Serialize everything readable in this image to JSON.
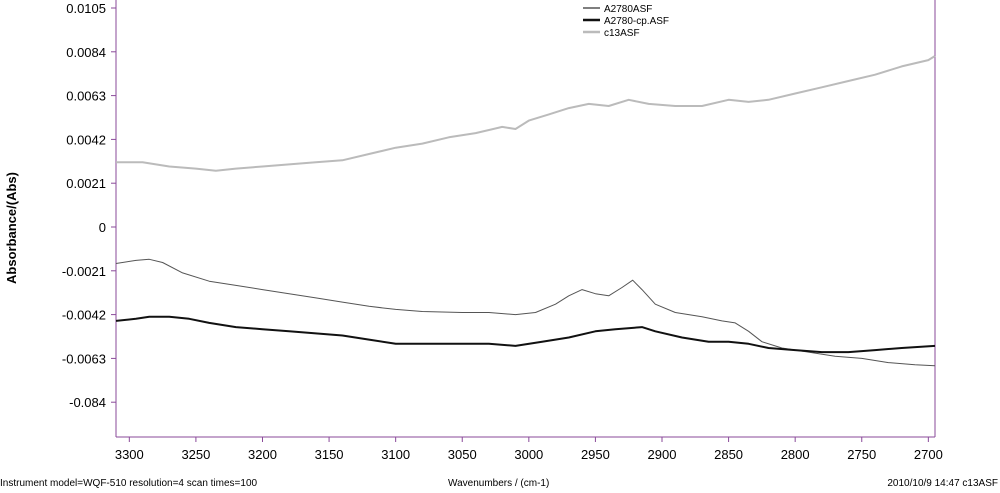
{
  "chart_data": {
    "type": "line",
    "title": "",
    "xlabel": "Wavenumbers / (cm-1)",
    "ylabel": "Absorbance/(Abs)",
    "xlim": [
      3310,
      2695
    ],
    "x_reversed": true,
    "x_ticks": [
      "3300",
      "3250",
      "3200",
      "3150",
      "3100",
      "3050",
      "3000",
      "2950",
      "2900",
      "2850",
      "2800",
      "2750",
      "2700"
    ],
    "y_ticks": [
      "0.0105",
      "0.0084",
      "0.0063",
      "0.0042",
      "0.0021",
      "0",
      "-0.0021",
      "-0.0042",
      "-0.0063",
      "-0.084"
    ],
    "grid": false,
    "legend_position": "top",
    "series": [
      {
        "name": "A2780ASF",
        "color": "#555555",
        "width": 1,
        "points": [
          [
            3310,
            -0.00175
          ],
          [
            3295,
            -0.0016
          ],
          [
            3285,
            -0.00155
          ],
          [
            3275,
            -0.0017
          ],
          [
            3260,
            -0.0022
          ],
          [
            3240,
            -0.0026
          ],
          [
            3220,
            -0.0028
          ],
          [
            3200,
            -0.003
          ],
          [
            3180,
            -0.0032
          ],
          [
            3160,
            -0.0034
          ],
          [
            3140,
            -0.0036
          ],
          [
            3120,
            -0.0038
          ],
          [
            3100,
            -0.00395
          ],
          [
            3080,
            -0.00405
          ],
          [
            3050,
            -0.0041
          ],
          [
            3030,
            -0.0041
          ],
          [
            3010,
            -0.0042
          ],
          [
            2995,
            -0.0041
          ],
          [
            2980,
            -0.0037
          ],
          [
            2970,
            -0.0033
          ],
          [
            2960,
            -0.003
          ],
          [
            2950,
            -0.0032
          ],
          [
            2940,
            -0.0033
          ],
          [
            2930,
            -0.0029
          ],
          [
            2922,
            -0.00255
          ],
          [
            2915,
            -0.003
          ],
          [
            2905,
            -0.0037
          ],
          [
            2890,
            -0.0041
          ],
          [
            2870,
            -0.0043
          ],
          [
            2855,
            -0.0045
          ],
          [
            2845,
            -0.0046
          ],
          [
            2835,
            -0.005
          ],
          [
            2825,
            -0.0055
          ],
          [
            2810,
            -0.0058
          ],
          [
            2790,
            -0.006
          ],
          [
            2770,
            -0.0062
          ],
          [
            2750,
            -0.0063
          ],
          [
            2730,
            -0.0065
          ],
          [
            2710,
            -0.0066
          ],
          [
            2695,
            -0.00665
          ]
        ]
      },
      {
        "name": "A2780-cp.ASF",
        "color": "#111111",
        "width": 2,
        "points": [
          [
            3310,
            -0.0045
          ],
          [
            3295,
            -0.0044
          ],
          [
            3285,
            -0.0043
          ],
          [
            3270,
            -0.0043
          ],
          [
            3255,
            -0.0044
          ],
          [
            3240,
            -0.0046
          ],
          [
            3220,
            -0.0048
          ],
          [
            3200,
            -0.0049
          ],
          [
            3180,
            -0.005
          ],
          [
            3160,
            -0.0051
          ],
          [
            3140,
            -0.0052
          ],
          [
            3120,
            -0.0054
          ],
          [
            3100,
            -0.0056
          ],
          [
            3080,
            -0.0056
          ],
          [
            3050,
            -0.0056
          ],
          [
            3030,
            -0.0056
          ],
          [
            3010,
            -0.0057
          ],
          [
            2990,
            -0.0055
          ],
          [
            2970,
            -0.0053
          ],
          [
            2950,
            -0.005
          ],
          [
            2935,
            -0.0049
          ],
          [
            2915,
            -0.0048
          ],
          [
            2905,
            -0.005
          ],
          [
            2885,
            -0.0053
          ],
          [
            2865,
            -0.0055
          ],
          [
            2850,
            -0.0055
          ],
          [
            2835,
            -0.0056
          ],
          [
            2820,
            -0.0058
          ],
          [
            2800,
            -0.0059
          ],
          [
            2780,
            -0.006
          ],
          [
            2760,
            -0.006
          ],
          [
            2740,
            -0.0059
          ],
          [
            2720,
            -0.0058
          ],
          [
            2695,
            -0.0057
          ]
        ]
      },
      {
        "name": "c13ASF",
        "color": "#bbbbbb",
        "width": 2,
        "points": [
          [
            3310,
            0.0031
          ],
          [
            3290,
            0.0031
          ],
          [
            3270,
            0.0029
          ],
          [
            3250,
            0.0028
          ],
          [
            3235,
            0.0027
          ],
          [
            3220,
            0.0028
          ],
          [
            3200,
            0.0029
          ],
          [
            3180,
            0.003
          ],
          [
            3160,
            0.0031
          ],
          [
            3140,
            0.0032
          ],
          [
            3120,
            0.0035
          ],
          [
            3100,
            0.0038
          ],
          [
            3080,
            0.004
          ],
          [
            3060,
            0.0043
          ],
          [
            3040,
            0.0045
          ],
          [
            3020,
            0.0048
          ],
          [
            3010,
            0.0047
          ],
          [
            3000,
            0.0051
          ],
          [
            2985,
            0.0054
          ],
          [
            2970,
            0.0057
          ],
          [
            2955,
            0.0059
          ],
          [
            2940,
            0.0058
          ],
          [
            2925,
            0.0061
          ],
          [
            2910,
            0.0059
          ],
          [
            2890,
            0.0058
          ],
          [
            2870,
            0.0058
          ],
          [
            2850,
            0.0061
          ],
          [
            2835,
            0.006
          ],
          [
            2820,
            0.0061
          ],
          [
            2800,
            0.0064
          ],
          [
            2780,
            0.0067
          ],
          [
            2760,
            0.007
          ],
          [
            2740,
            0.0073
          ],
          [
            2720,
            0.0077
          ],
          [
            2700,
            0.008
          ],
          [
            2695,
            0.0082
          ]
        ]
      }
    ]
  },
  "footer": {
    "left": "Instrument model=WQF-510 resolution=4 scan times=100",
    "right": "2010/10/9 14:47 c13ASF"
  }
}
